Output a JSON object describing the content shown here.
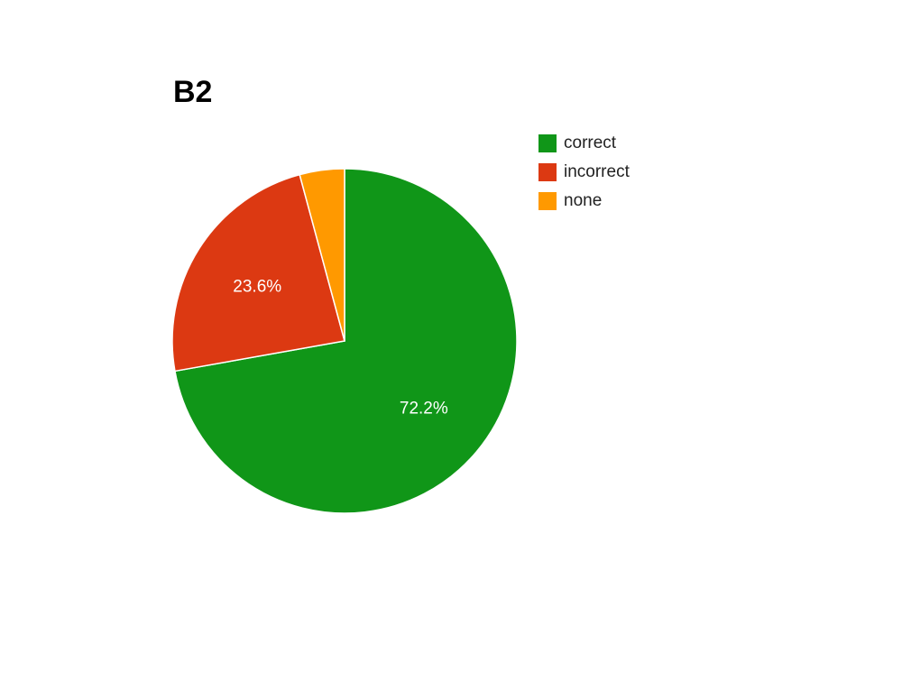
{
  "chart_data": {
    "type": "pie",
    "title": "B2",
    "legend_position": "right",
    "slices": [
      {
        "label": "correct",
        "value": 72.2,
        "display": "72.2%",
        "color": "#109618"
      },
      {
        "label": "incorrect",
        "value": 23.6,
        "display": "23.6%",
        "color": "#dc3912"
      },
      {
        "label": "none",
        "value": 4.2,
        "display": "",
        "color": "#ff9900"
      }
    ]
  }
}
